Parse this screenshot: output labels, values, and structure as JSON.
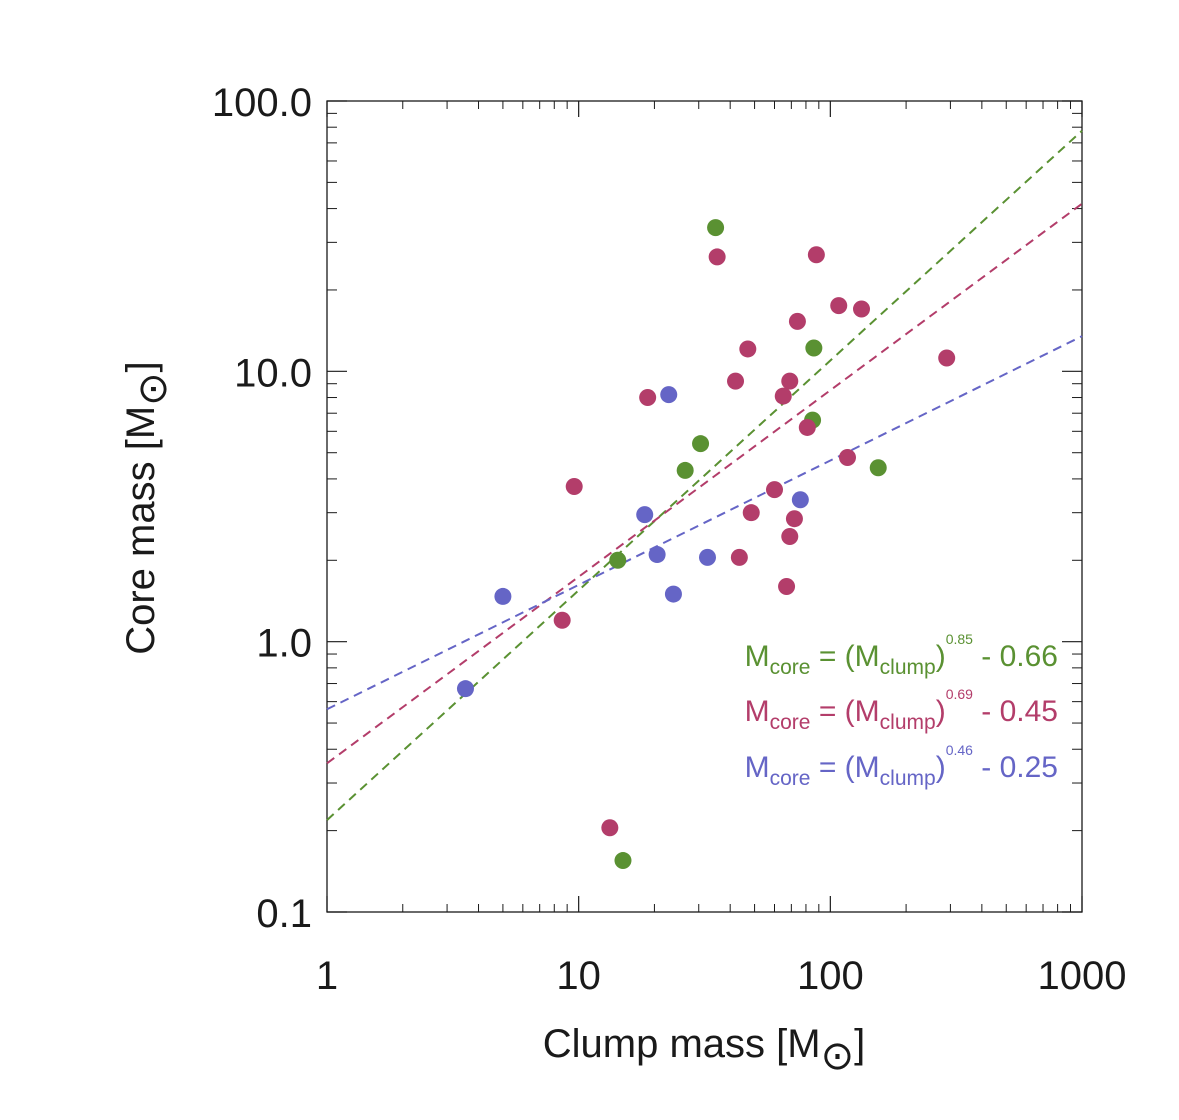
{
  "chart_data": {
    "type": "scatter",
    "xlabel": "Clump mass [M",
    "ylabel": "Core mass [M",
    "unit_symbol": "⊙",
    "unit_close": "]",
    "xscale": "log",
    "yscale": "log",
    "xlim": [
      1,
      1000
    ],
    "ylim": [
      0.1,
      100
    ],
    "x_ticks": [
      {
        "value": 1,
        "label": "1"
      },
      {
        "value": 10,
        "label": "10"
      },
      {
        "value": 100,
        "label": "100"
      },
      {
        "value": 1000,
        "label": "1000"
      }
    ],
    "y_ticks": [
      {
        "value": 0.1,
        "label": "0.1"
      },
      {
        "value": 1,
        "label": "1.0"
      },
      {
        "value": 10,
        "label": "10.0"
      },
      {
        "value": 100,
        "label": "100.0"
      }
    ],
    "series": [
      {
        "name": "green",
        "color": "#5a9132",
        "points": [
          {
            "x": 35.0,
            "y": 34.0
          },
          {
            "x": 86.0,
            "y": 12.2
          },
          {
            "x": 85.0,
            "y": 6.6
          },
          {
            "x": 30.5,
            "y": 5.4
          },
          {
            "x": 26.5,
            "y": 4.3
          },
          {
            "x": 155.0,
            "y": 4.4
          },
          {
            "x": 14.3,
            "y": 2.0
          },
          {
            "x": 15.0,
            "y": 0.155
          }
        ],
        "fit": {
          "exponent": 0.85,
          "offset": -0.66,
          "x_start": 1,
          "x_end": 1000
        },
        "equation": {
          "m": "M",
          "core": "core",
          "eq": " = (M",
          "clump": "clump",
          "close": ")",
          "exp": "0.85",
          "tail": " - 0.66"
        }
      },
      {
        "name": "magenta",
        "color": "#b33d6a",
        "points": [
          {
            "x": 35.5,
            "y": 26.5
          },
          {
            "x": 88.0,
            "y": 27.0
          },
          {
            "x": 108.0,
            "y": 17.5
          },
          {
            "x": 133.0,
            "y": 17.0
          },
          {
            "x": 74.0,
            "y": 15.3
          },
          {
            "x": 47.0,
            "y": 12.1
          },
          {
            "x": 290.0,
            "y": 11.2
          },
          {
            "x": 42.0,
            "y": 9.2
          },
          {
            "x": 69.0,
            "y": 9.2
          },
          {
            "x": 65.0,
            "y": 8.1
          },
          {
            "x": 18.8,
            "y": 8.0
          },
          {
            "x": 81.0,
            "y": 6.2
          },
          {
            "x": 117.0,
            "y": 4.8
          },
          {
            "x": 9.6,
            "y": 3.75
          },
          {
            "x": 60.0,
            "y": 3.65
          },
          {
            "x": 48.5,
            "y": 3.0
          },
          {
            "x": 72.0,
            "y": 2.85
          },
          {
            "x": 69.0,
            "y": 2.45
          },
          {
            "x": 43.5,
            "y": 2.05
          },
          {
            "x": 67.0,
            "y": 1.6
          },
          {
            "x": 8.6,
            "y": 1.2
          },
          {
            "x": 13.3,
            "y": 0.205
          }
        ],
        "fit": {
          "exponent": 0.69,
          "offset": -0.45,
          "x_start": 1,
          "x_end": 1000
        },
        "equation": {
          "m": "M",
          "core": "core",
          "eq": " = (M",
          "clump": "clump",
          "close": ")",
          "exp": "0.69",
          "tail": " - 0.45"
        }
      },
      {
        "name": "blue",
        "color": "#6565c6",
        "points": [
          {
            "x": 22.8,
            "y": 8.2
          },
          {
            "x": 76.0,
            "y": 3.35
          },
          {
            "x": 18.3,
            "y": 2.95
          },
          {
            "x": 20.5,
            "y": 2.1
          },
          {
            "x": 32.5,
            "y": 2.05
          },
          {
            "x": 23.8,
            "y": 1.5
          },
          {
            "x": 5.0,
            "y": 1.47
          },
          {
            "x": 3.55,
            "y": 0.67
          }
        ],
        "fit": {
          "exponent": 0.46,
          "offset": -0.25,
          "x_start": 1,
          "x_end": 1000
        },
        "equation": {
          "m": "M",
          "core": "core",
          "eq": " = (M",
          "clump": "clump",
          "close": ")",
          "exp": "0.46",
          "tail": " - 0.25"
        }
      }
    ]
  }
}
